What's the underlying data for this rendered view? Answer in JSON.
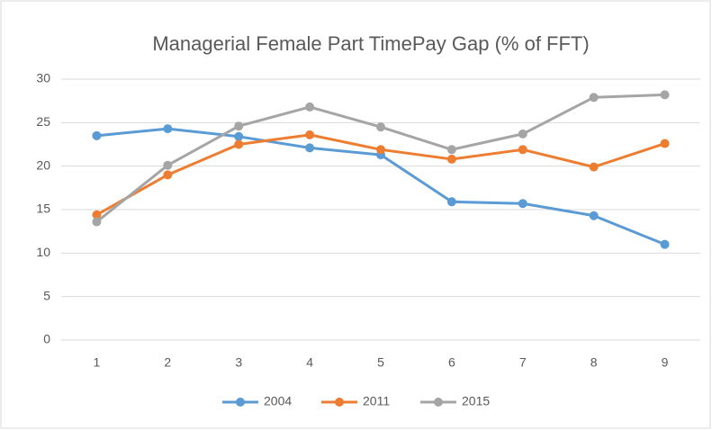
{
  "chart_data": {
    "type": "line",
    "title": "Managerial Female Part TimePay Gap (% of FFT)",
    "categories": [
      "1",
      "2",
      "3",
      "4",
      "5",
      "6",
      "7",
      "8",
      "9"
    ],
    "series": [
      {
        "name": "2004",
        "color": "#5b9bd5",
        "values": [
          23.5,
          24.3,
          23.4,
          22.1,
          21.3,
          15.9,
          15.7,
          14.3,
          11.0
        ]
      },
      {
        "name": "2011",
        "color": "#ed7d31",
        "values": [
          14.4,
          19.0,
          22.5,
          23.6,
          21.9,
          20.8,
          21.9,
          19.9,
          22.6
        ]
      },
      {
        "name": "2015",
        "color": "#a5a5a5",
        "values": [
          13.6,
          20.1,
          24.6,
          26.8,
          24.5,
          21.9,
          23.7,
          27.9,
          28.2
        ]
      }
    ],
    "ylim": [
      0,
      30
    ],
    "yticks": [
      0,
      5,
      10,
      15,
      20,
      25,
      30
    ],
    "grid": true,
    "legend": "bottom"
  }
}
